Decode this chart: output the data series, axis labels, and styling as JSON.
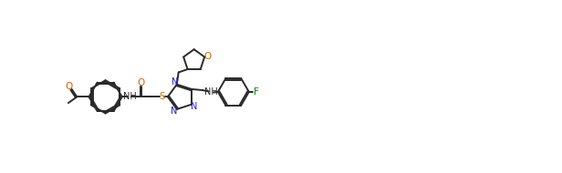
{
  "bg_color": "#ffffff",
  "line_color": "#2a2a2a",
  "atom_color_N": "#2020cc",
  "atom_color_O": "#cc6600",
  "atom_color_F": "#008800",
  "atom_color_S": "#bb7700",
  "lw": 1.4,
  "figsize": [
    6.16,
    1.9
  ],
  "dpi": 100,
  "xlim": [
    0,
    130
  ],
  "ylim": [
    0,
    50
  ]
}
